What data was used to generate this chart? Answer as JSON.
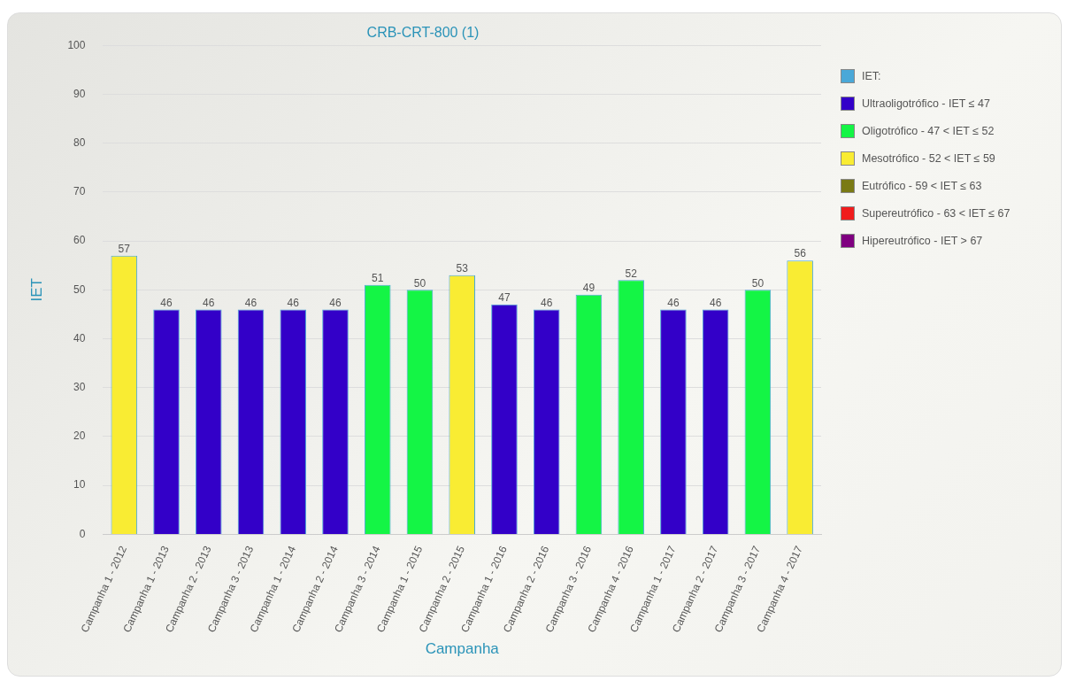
{
  "chart_data": {
    "type": "bar",
    "title": "CRB-CRT-800 (1)",
    "xlabel": "Campanha",
    "ylabel": "IET",
    "categories": [
      "Campanha 1 - 2012",
      "Campanha 1 - 2013",
      "Campanha 2 - 2013",
      "Campanha 3 - 2013",
      "Campanha 1 - 2014",
      "Campanha 2 - 2014",
      "Campanha 3 - 2014",
      "Campanha 1 - 2015",
      "Campanha 2 - 2015",
      "Campanha 1 - 2016",
      "Campanha 2 - 2016",
      "Campanha 3 - 2016",
      "Campanha 4 - 2016",
      "Campanha 1 - 2017",
      "Campanha 2 - 2017",
      "Campanha 3 - 2017",
      "Campanha 4 - 2017"
    ],
    "series": [
      {
        "name": "IET:",
        "color": "#4aa8d8",
        "values": [
          57,
          46,
          46,
          46,
          46,
          46,
          51,
          50,
          53,
          47,
          46,
          49,
          52,
          46,
          46,
          50,
          56
        ],
        "colors": [
          "#f9ec33",
          "#3300c8",
          "#3300c8",
          "#3300c8",
          "#3300c8",
          "#3300c8",
          "#14f545",
          "#14f545",
          "#f9ec33",
          "#3300c8",
          "#3300c8",
          "#14f545",
          "#14f545",
          "#3300c8",
          "#3300c8",
          "#14f545",
          "#f9ec33"
        ]
      },
      {
        "name": "Ultraoligotrófico - IET ≤ 47",
        "color": "#3300c8",
        "values": [
          null,
          null,
          null,
          null,
          null,
          null,
          null,
          null,
          null,
          null,
          null,
          null,
          null,
          null,
          null,
          null,
          null
        ]
      },
      {
        "name": "Oligotrófico - 47 < IET ≤ 52",
        "color": "#14f545",
        "values": [
          null,
          null,
          null,
          null,
          null,
          null,
          null,
          null,
          null,
          null,
          null,
          null,
          null,
          null,
          null,
          null,
          null
        ]
      },
      {
        "name": "Mesotrófico - 52 < IET ≤ 59",
        "color": "#f9ec33",
        "values": [
          null,
          null,
          null,
          null,
          null,
          null,
          null,
          null,
          null,
          null,
          null,
          null,
          null,
          null,
          null,
          null,
          null
        ]
      },
      {
        "name": "Eutrófico - 59 < IET ≤ 63",
        "color": "#7a7a14",
        "values": [
          null,
          null,
          null,
          null,
          null,
          null,
          null,
          null,
          null,
          null,
          null,
          null,
          null,
          null,
          null,
          null,
          null
        ]
      },
      {
        "name": "Supereutrófico - 63 < IET ≤ 67",
        "color": "#f01c1c",
        "values": [
          null,
          null,
          null,
          null,
          null,
          null,
          null,
          null,
          null,
          null,
          null,
          null,
          null,
          null,
          null,
          null,
          null
        ]
      },
      {
        "name": "Hipereutrófico - IET > 67",
        "color": "#7f0080",
        "values": [
          null,
          null,
          null,
          null,
          null,
          null,
          null,
          null,
          null,
          null,
          null,
          null,
          null,
          null,
          null,
          null,
          null
        ]
      }
    ],
    "ylim": [
      0,
      100
    ],
    "yticks": [
      0,
      10,
      20,
      30,
      40,
      50,
      60,
      70,
      80,
      90,
      100
    ],
    "grid": "y",
    "legend": "top right",
    "data_labels": true
  }
}
